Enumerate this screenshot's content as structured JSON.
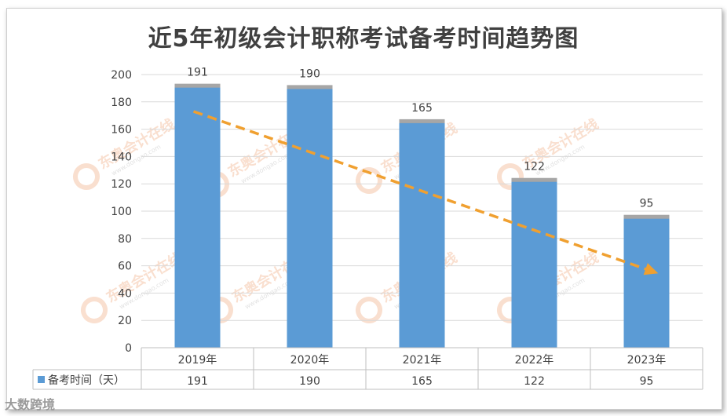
{
  "chart_data": {
    "type": "bar",
    "title": "近5年初级会计职称考试备考时间趋势图",
    "categories": [
      "2019年",
      "2020年",
      "2021年",
      "2022年",
      "2023年"
    ],
    "series": [
      {
        "name": "备考时间（天）",
        "values": [
          191,
          190,
          165,
          122,
          95
        ]
      }
    ],
    "ylim": [
      0,
      200
    ],
    "yticks": [
      0,
      20,
      40,
      60,
      80,
      100,
      120,
      140,
      160,
      180,
      200
    ],
    "grid": true,
    "data_table": true,
    "trend_arrow": {
      "from": 173,
      "to": 55
    },
    "colors": {
      "bar": "#5b9bd5",
      "bar_cap": "#a6a6a6",
      "trend": "#f0a030",
      "grid": "#d9d9d9",
      "text": "#404040"
    }
  },
  "watermarks": [
    "东奥会计在线",
    "www.dongao.com"
  ],
  "footer_logo": "大数跨境"
}
